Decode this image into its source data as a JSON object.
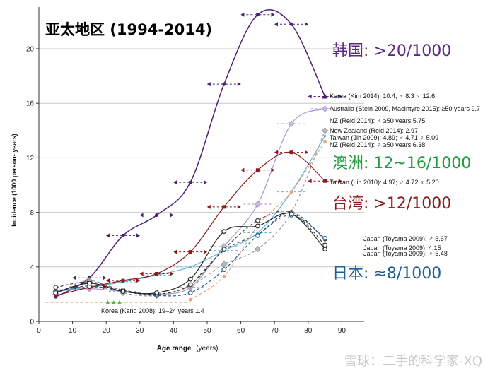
{
  "chart_data": {
    "type": "line",
    "title": "亚太地区 (1994-2014)",
    "xlabel": "Age range",
    "xlabel_unit": "(years)",
    "ylabel": "Incidence (1000 person- years)",
    "xlim": [
      0,
      95
    ],
    "ylim": [
      0,
      23
    ],
    "xticks": [
      "0",
      "10",
      "20",
      "30",
      "40",
      "50",
      "60",
      "70",
      "80",
      "90"
    ],
    "yticks": [
      "0",
      "4",
      "8",
      "12",
      "16",
      "20"
    ],
    "annotations": [
      {
        "text": "韩国: >20/1000",
        "color": "#5b2a86"
      },
      {
        "text": "澳洲: 12~16/1000",
        "color": "#1f9a3e"
      },
      {
        "text": "台湾: >12/1000",
        "color": "#8b1a1a"
      },
      {
        "text": "日本: ≈8/1000",
        "color": "#1f5f95"
      }
    ],
    "watermark": "雪球：二手的科学家-XQ",
    "series": [
      {
        "name": "Korea (Kim 2014): 10.4; ♂ 8.3 ♀ 12.6",
        "color": "#4b2075",
        "style": "solid",
        "x": [
          5,
          15,
          25,
          35,
          45,
          55,
          65,
          75,
          85
        ],
        "y": [
          1.8,
          3.2,
          6.3,
          7.8,
          10.2,
          17.4,
          22.5,
          21.8,
          16.5
        ]
      },
      {
        "name": "Australia (Stein 2009, MacIntyre 2015): ≥50 years 9.7",
        "color": "#a896cc",
        "style": "solid",
        "x": [
          5,
          15,
          25,
          35,
          45,
          55,
          65,
          75,
          85
        ],
        "y": [
          2.2,
          2.4,
          2.2,
          2.0,
          2.5,
          5.5,
          8.6,
          14.5,
          15.6
        ]
      },
      {
        "name": "NZ (Reid 2014): ♂ ≥50  years 5.75",
        "color": "#333333",
        "style": "dashed",
        "x": [
          45,
          55,
          65,
          75,
          85
        ],
        "y": [
          2.6,
          5.2,
          6.4,
          8.0,
          6.0
        ]
      },
      {
        "name": "New Zealand (Reid 2014): 2.97",
        "color": "#999999",
        "style": "dashed",
        "x": [
          5,
          15,
          25,
          35,
          45,
          55,
          65,
          75,
          85
        ],
        "y": [
          2.0,
          3.0,
          2.1,
          1.9,
          2.6,
          4.2,
          5.3,
          8.0,
          14.0
        ]
      },
      {
        "name": "Taiwan (Jih 2009): 4.89; ♂ 4.71 ♀ 5.09",
        "color": "#5fb6d6",
        "style": "solid",
        "x": [
          5,
          15,
          25,
          35,
          45,
          55,
          65,
          75,
          85
        ],
        "y": [
          2.3,
          2.5,
          2.9,
          3.4,
          4.0,
          5.2,
          6.5,
          9.5,
          13.6
        ]
      },
      {
        "name": "NZ (Reid 2014): ♀ ≥50 years 6.38",
        "color": "#f0a27a",
        "style": "dashed",
        "x": [
          45,
          55,
          65,
          75,
          85
        ],
        "y": [
          1.6,
          3.3,
          7.0,
          9.5,
          13.2
        ]
      },
      {
        "name": "Taiwan (Lin 2010): 4.97; ♂ 4.72 ♀ 5.20",
        "color": "#8b1a1a",
        "style": "solid",
        "x": [
          5,
          15,
          25,
          35,
          45,
          55,
          65,
          75,
          85
        ],
        "y": [
          1.9,
          2.5,
          3.0,
          3.5,
          5.1,
          8.4,
          11.1,
          12.4,
          10.3
        ]
      },
      {
        "name": "Japan (Toyama 2009): ♂ 3.67",
        "color": "#1f5f95",
        "style": "dashed",
        "x": [
          5,
          15,
          25,
          35,
          45,
          55,
          65,
          75,
          85
        ],
        "y": [
          2.2,
          2.6,
          2.2,
          1.9,
          2.1,
          3.8,
          6.3,
          7.8,
          6.1
        ]
      },
      {
        "name": "Japan (Toyama 2009): 4.15",
        "color": "#3a3a3a",
        "style": "dashed",
        "x": [
          5,
          15,
          25,
          35,
          45,
          55,
          65,
          75,
          85
        ],
        "y": [
          2.5,
          2.9,
          2.3,
          2.0,
          2.7,
          5.3,
          7.4,
          8.0,
          5.6
        ]
      },
      {
        "name": "Japan (Toyama 2009): ♀ 5.48",
        "color": "#222222",
        "style": "solid",
        "x": [
          5,
          15,
          25,
          35,
          45,
          55,
          65,
          75,
          85
        ],
        "y": [
          2.1,
          2.8,
          2.2,
          2.1,
          3.1,
          6.6,
          7.0,
          7.9,
          5.3
        ]
      },
      {
        "name": "Korea (Kang 2008): 19–24 years 1.4",
        "color": "#4fb847",
        "style": "dashed",
        "x": [
          2,
          45
        ],
        "y": [
          1.4,
          1.4
        ]
      }
    ]
  }
}
